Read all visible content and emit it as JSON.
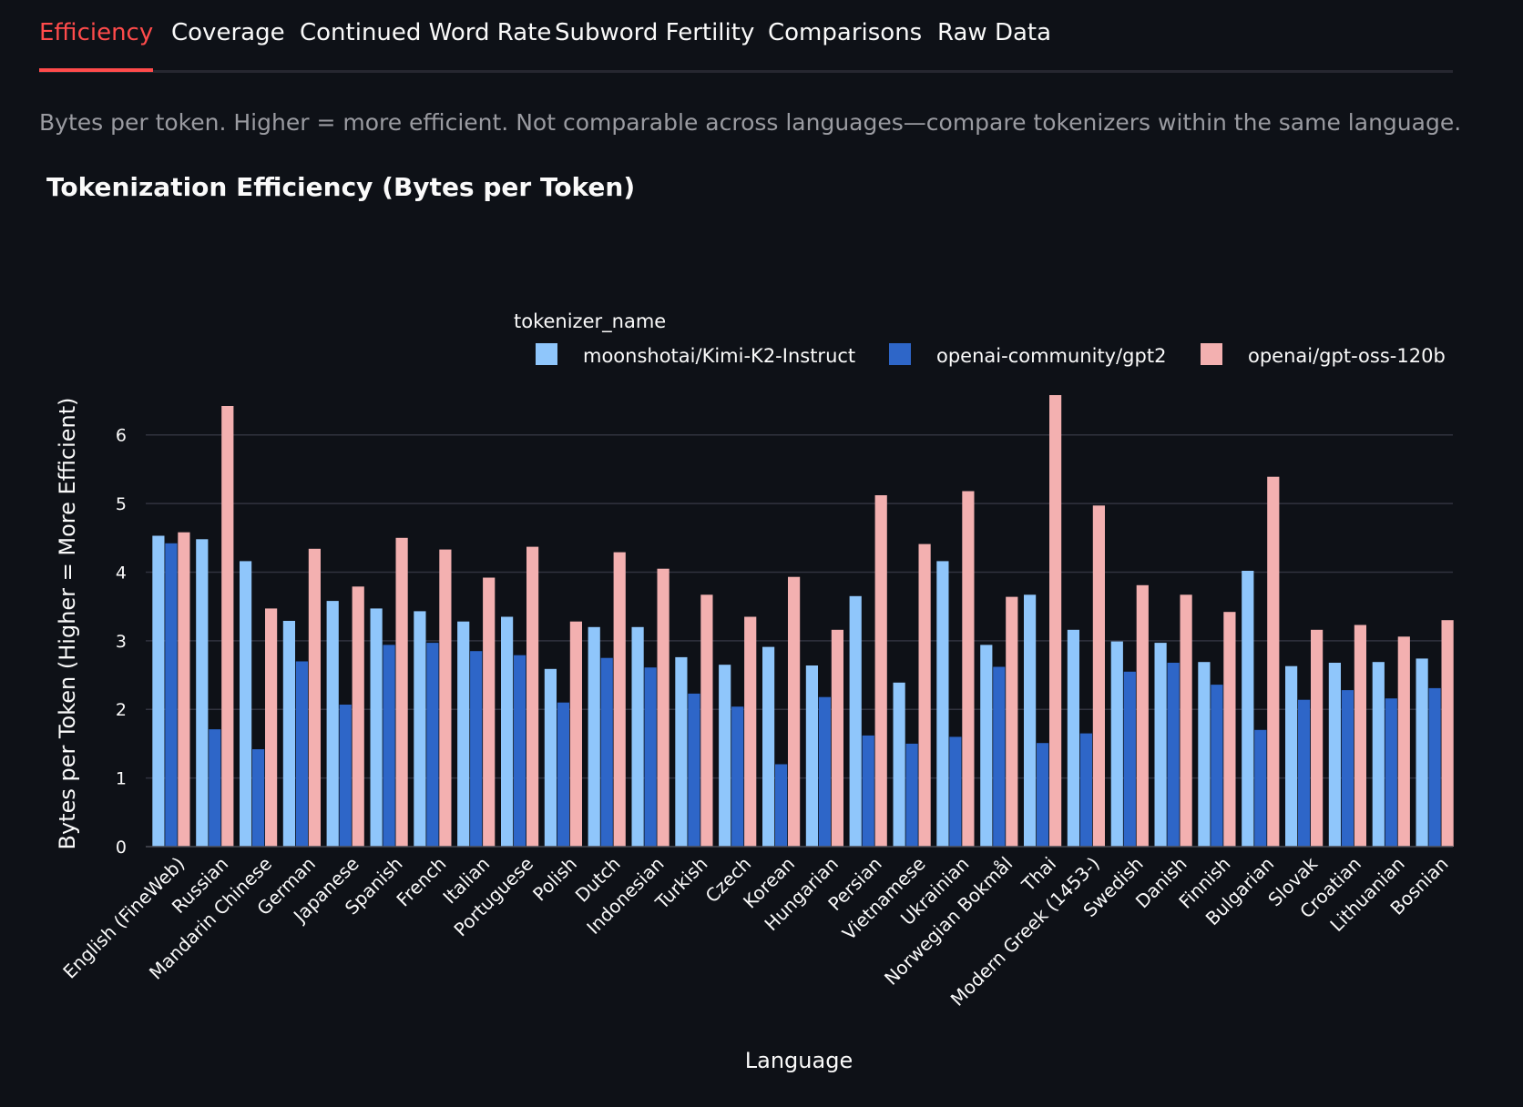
{
  "tabs": [
    {
      "label": "Efficiency",
      "active": true
    },
    {
      "label": "Coverage",
      "active": false
    },
    {
      "label": "Continued Word Rate",
      "active": false
    },
    {
      "label": "Subword Fertility",
      "active": false
    },
    {
      "label": "Comparisons",
      "active": false
    },
    {
      "label": "Raw Data",
      "active": false
    }
  ],
  "caption": "Bytes per token. Higher = more efficient. Not comparable across languages—compare tokenizers within the same language.",
  "colors": {
    "accent": "#ff4b4b",
    "background": "#0e1117",
    "series": [
      "#8fc6fb",
      "#2e66c8",
      "#f3b0b0"
    ]
  },
  "chart_data": {
    "type": "bar",
    "title": "Tokenization Efficiency (Bytes per Token)",
    "xlabel": "Language",
    "ylabel": "Bytes per Token (Higher = More Efficient)",
    "legend_title": "tokenizer_name",
    "legend_position": "top-right",
    "ylim": [
      0,
      6.5
    ],
    "yticks": [
      0,
      1,
      2,
      3,
      4,
      5,
      6
    ],
    "grid": true,
    "categories": [
      "English (FineWeb)",
      "Russian",
      "Mandarin Chinese",
      "German",
      "Japanese",
      "Spanish",
      "French",
      "Italian",
      "Portuguese",
      "Polish",
      "Dutch",
      "Indonesian",
      "Turkish",
      "Czech",
      "Korean",
      "Hungarian",
      "Persian",
      "Vietnamese",
      "Ukrainian",
      "Norwegian Bokmål",
      "Thai",
      "Modern Greek (1453-)",
      "Swedish",
      "Danish",
      "Finnish",
      "Bulgarian",
      "Slovak",
      "Croatian",
      "Lithuanian",
      "Bosnian"
    ],
    "series": [
      {
        "name": "moonshotai/Kimi-K2-Instruct",
        "color": "#8fc6fb",
        "values": [
          4.53,
          4.48,
          4.16,
          3.29,
          3.58,
          3.47,
          3.43,
          3.28,
          3.35,
          2.59,
          3.2,
          3.2,
          2.76,
          2.65,
          2.91,
          2.64,
          3.65,
          2.39,
          4.16,
          2.94,
          3.67,
          3.16,
          2.99,
          2.97,
          2.69,
          4.02,
          2.63,
          2.68,
          2.69,
          2.74
        ]
      },
      {
        "name": "openai-community/gpt2",
        "color": "#2e66c8",
        "values": [
          4.42,
          1.71,
          1.42,
          2.7,
          2.07,
          2.94,
          2.97,
          2.85,
          2.79,
          2.1,
          2.75,
          2.61,
          2.23,
          2.04,
          1.2,
          2.18,
          1.62,
          1.5,
          1.6,
          2.62,
          1.51,
          1.65,
          2.55,
          2.68,
          2.36,
          1.7,
          2.14,
          2.28,
          2.16,
          2.31
        ]
      },
      {
        "name": "openai/gpt-oss-120b",
        "color": "#f3b0b0",
        "values": [
          4.58,
          6.42,
          3.47,
          4.34,
          3.79,
          4.5,
          4.33,
          3.92,
          4.37,
          3.28,
          4.29,
          4.05,
          3.67,
          3.35,
          3.93,
          3.16,
          5.12,
          4.41,
          5.18,
          3.64,
          6.58,
          4.97,
          3.81,
          3.67,
          3.42,
          5.39,
          3.16,
          3.23,
          3.06,
          3.3
        ]
      }
    ]
  }
}
